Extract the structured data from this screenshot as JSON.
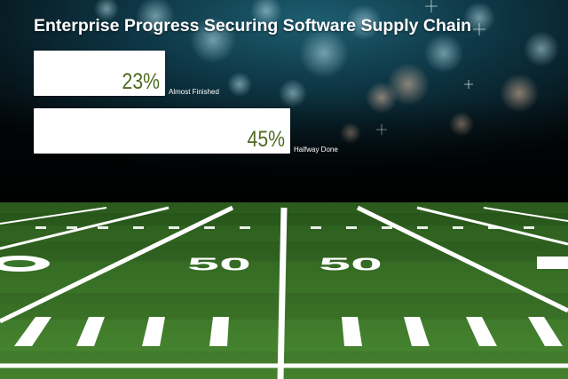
{
  "title": "Enterprise Progress Securing Software Supply Chain",
  "colors": {
    "bar": "#ffffff",
    "value_text": "#4f6b22",
    "sky": "#0d3a4a",
    "turf": "#3f7a2a"
  },
  "chart_data": {
    "type": "bar",
    "orientation": "horizontal",
    "categories": [
      "Almost Finished",
      "Halfway Done"
    ],
    "values": [
      23,
      45
    ],
    "value_labels": [
      "23%",
      "45%"
    ],
    "unit": "%",
    "xlim": [
      0,
      70
    ]
  },
  "field": {
    "yard_markers": [
      "50",
      "50"
    ]
  }
}
